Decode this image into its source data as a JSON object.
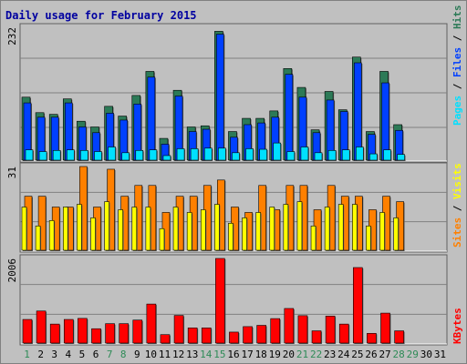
{
  "colors": {
    "background": "#c0c0c0",
    "title": "#0000a0",
    "pages_top": "#2c7a57",
    "files": "#0040ff",
    "hits_top": "#2c7a57",
    "pages": "#00e0ff",
    "visits": "#ffff00",
    "sites": "#ff8000",
    "kbytes": "#ff0000",
    "weekend_label": "#2e8b57",
    "weekday_label": "#008000"
  },
  "chart_data": [
    {
      "type": "bar",
      "title": "Daily usage for February 2015",
      "categories": [
        "1",
        "2",
        "3",
        "4",
        "5",
        "6",
        "7",
        "8",
        "9",
        "10",
        "11",
        "12",
        "13",
        "14",
        "15",
        "16",
        "17",
        "18",
        "19",
        "20",
        "21",
        "22",
        "23",
        "24",
        "25",
        "26",
        "27",
        "28",
        "29",
        "30",
        "31"
      ],
      "ylim": [
        0,
        232
      ],
      "ymax_label": "232",
      "legend": [
        "Pages",
        "Files",
        "Hits"
      ],
      "series": [
        {
          "name": "Hits",
          "values": [
            110,
            83,
            80,
            107,
            68,
            58,
            94,
            77,
            113,
            155,
            38,
            122,
            58,
            60,
            225,
            50,
            73,
            73,
            86,
            160,
            127,
            53,
            120,
            88,
            180,
            50,
            155,
            62,
            0,
            0,
            0
          ]
        },
        {
          "name": "Files",
          "values": [
            100,
            75,
            75,
            100,
            58,
            48,
            82,
            70,
            98,
            145,
            28,
            112,
            50,
            54,
            220,
            40,
            62,
            65,
            75,
            150,
            110,
            48,
            105,
            85,
            170,
            45,
            135,
            52,
            0,
            0,
            0
          ]
        },
        {
          "name": "Pages",
          "values": [
            18,
            15,
            17,
            18,
            17,
            15,
            23,
            13,
            17,
            18,
            8,
            20,
            20,
            21,
            21,
            13,
            20,
            19,
            30,
            15,
            23,
            13,
            17,
            18,
            23,
            11,
            18,
            10,
            0,
            0,
            0
          ]
        }
      ]
    },
    {
      "type": "bar",
      "categories": [
        "1",
        "2",
        "3",
        "4",
        "5",
        "6",
        "7",
        "8",
        "9",
        "10",
        "11",
        "12",
        "13",
        "14",
        "15",
        "16",
        "17",
        "18",
        "19",
        "20",
        "21",
        "22",
        "23",
        "24",
        "25",
        "26",
        "27",
        "28",
        "29",
        "30",
        "31"
      ],
      "ylim": [
        0,
        31
      ],
      "ymax_label": "31",
      "legend": [
        "Visits",
        "Sites"
      ],
      "series": [
        {
          "name": "Sites",
          "values": [
            20,
            20,
            16,
            16,
            31,
            16,
            30,
            20,
            24,
            24,
            14,
            20,
            20,
            24,
            26,
            16,
            14,
            24,
            15,
            24,
            24,
            15,
            24,
            20,
            20,
            15,
            20,
            18,
            0,
            0,
            0
          ]
        },
        {
          "name": "Visits",
          "values": [
            16,
            9,
            11,
            16,
            17,
            12,
            18,
            15,
            16,
            16,
            8,
            16,
            14,
            15,
            17,
            10,
            12,
            14,
            16,
            17,
            18,
            9,
            16,
            17,
            17,
            9,
            14,
            12,
            0,
            0,
            0
          ]
        }
      ]
    },
    {
      "type": "bar",
      "categories": [
        "1",
        "2",
        "3",
        "4",
        "5",
        "6",
        "7",
        "8",
        "9",
        "10",
        "11",
        "12",
        "13",
        "14",
        "15",
        "16",
        "17",
        "18",
        "19",
        "20",
        "21",
        "22",
        "23",
        "24",
        "25",
        "26",
        "27",
        "28",
        "29",
        "30",
        "31"
      ],
      "ylim": [
        0,
        2006
      ],
      "ymax_label": "2006",
      "legend": [
        "KBytes"
      ],
      "series": [
        {
          "name": "KBytes",
          "values": [
            560,
            760,
            450,
            560,
            585,
            340,
            460,
            460,
            545,
            925,
            200,
            655,
            360,
            360,
            2006,
            260,
            390,
            420,
            580,
            820,
            650,
            290,
            640,
            450,
            1790,
            230,
            710,
            290,
            0,
            0,
            0
          ]
        }
      ]
    }
  ]
}
